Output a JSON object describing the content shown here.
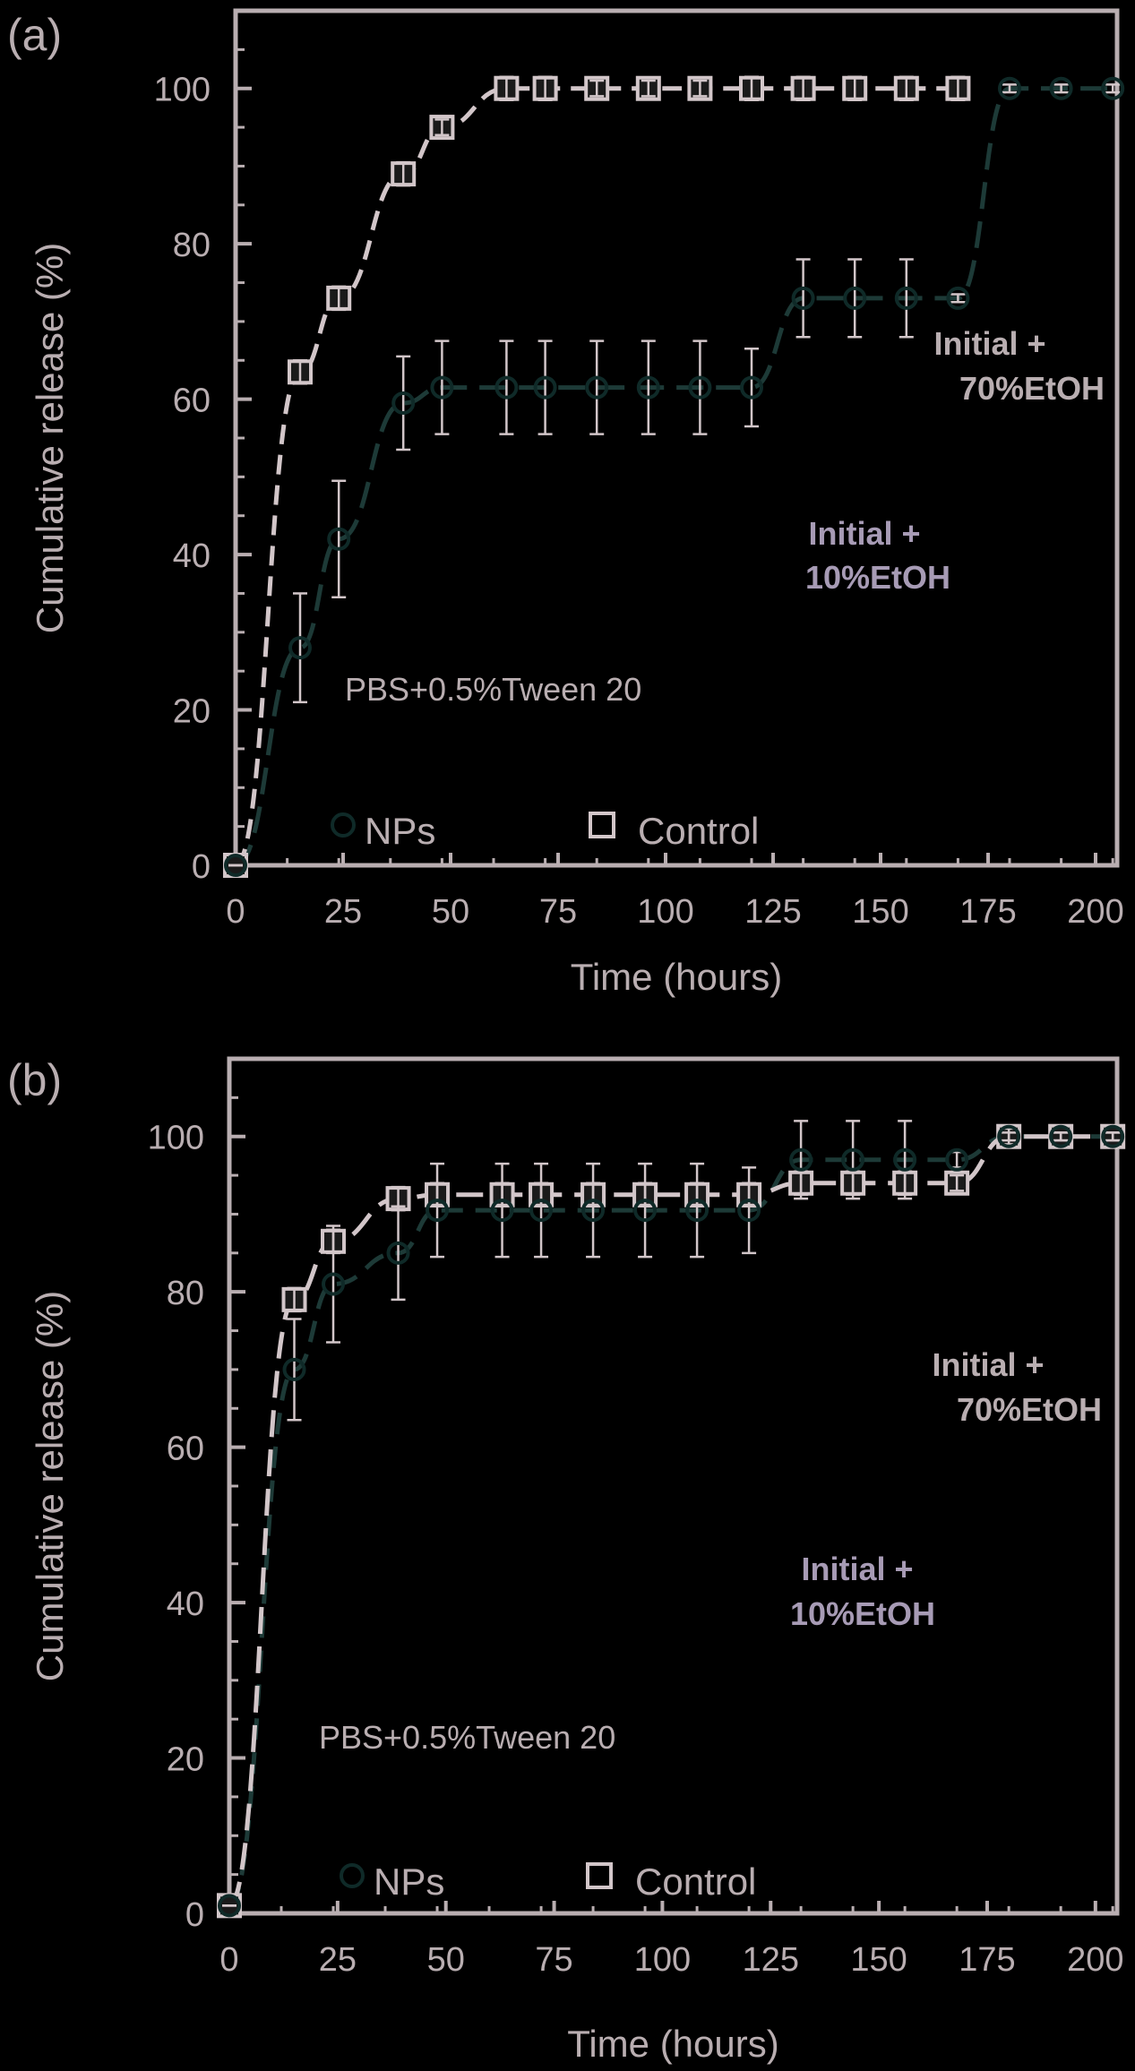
{
  "colors": {
    "background": "#000000",
    "axis": "#b9aeb1",
    "text": "#b9aeb1",
    "control": "#d2c6c9",
    "nps": "#0f2a28",
    "nps_line": "#1d3a37",
    "annotation_purple": "#a79bb5"
  },
  "chart_data": [
    {
      "type": "scatter",
      "panel_label": "(a)",
      "xlabel": "Time (hours)",
      "ylabel": "Cumulative release (%)",
      "xlim": [
        0,
        205
      ],
      "ylim": [
        0,
        110
      ],
      "xticks": [
        "0",
        "25",
        "50",
        "75",
        "100",
        "125",
        "150",
        "175",
        "200"
      ],
      "yticks": [
        "0",
        "20",
        "40",
        "60",
        "80",
        "100"
      ],
      "annotations": {
        "medium": "PBS+0.5%Tween 20",
        "ethanol10_line1": "Initial +",
        "ethanol10_line2": "10%EtOH",
        "ethanol70_line1": "Initial +",
        "ethanol70_line2": "70%EtOH"
      },
      "legend": {
        "nps": "NPs",
        "control": "Control",
        "position": "bottom"
      },
      "series": [
        {
          "name": "NPs",
          "x": [
            0,
            15,
            24,
            39,
            48,
            63,
            72,
            84,
            96,
            108,
            120,
            132,
            144,
            156,
            168,
            180,
            192,
            204
          ],
          "y": [
            0,
            28,
            42,
            59.5,
            61.5,
            61.5,
            61.5,
            61.5,
            61.5,
            61.5,
            61.5,
            73,
            73,
            73,
            73,
            100,
            100,
            100
          ],
          "err": [
            0,
            7,
            7.5,
            6,
            6,
            6,
            6,
            6,
            6,
            6,
            5,
            5,
            5,
            5,
            0.5,
            0.5,
            0.5,
            0.5
          ]
        },
        {
          "name": "Control",
          "x": [
            0,
            15,
            24,
            39,
            48,
            63,
            72,
            84,
            96,
            108,
            120,
            132,
            144,
            156,
            168
          ],
          "y": [
            0,
            63.5,
            73,
            89,
            95,
            100,
            100,
            100,
            100,
            100,
            100,
            100,
            100,
            100,
            100
          ],
          "err": [
            0,
            1.5,
            1.5,
            1.5,
            1,
            1.5,
            1.5,
            1,
            1,
            1,
            1.5,
            1.5,
            1.5,
            1.5,
            1.5
          ]
        }
      ]
    },
    {
      "type": "scatter",
      "panel_label": "(b)",
      "xlabel": "Time (hours)",
      "ylabel": "Cumulative release (%)",
      "xlim": [
        0,
        205
      ],
      "ylim": [
        0,
        110
      ],
      "xticks": [
        "0",
        "25",
        "50",
        "75",
        "100",
        "125",
        "150",
        "175",
        "200"
      ],
      "yticks": [
        "0",
        "20",
        "40",
        "60",
        "80",
        "100"
      ],
      "annotations": {
        "medium": "PBS+0.5%Tween 20",
        "ethanol10_line1": "Initial +",
        "ethanol10_line2": "10%EtOH",
        "ethanol70_line1": "Initial +",
        "ethanol70_line2": "70%EtOH"
      },
      "legend": {
        "nps": "NPs",
        "control": "Control",
        "position": "bottom"
      },
      "series": [
        {
          "name": "NPs",
          "x": [
            0,
            15,
            24,
            39,
            48,
            63,
            72,
            84,
            96,
            108,
            120,
            132,
            144,
            156,
            168,
            180,
            192,
            204
          ],
          "y": [
            1,
            70,
            81,
            85,
            90.5,
            90.5,
            90.5,
            90.5,
            90.5,
            90.5,
            90.5,
            97,
            97,
            97,
            97,
            100,
            100,
            100
          ],
          "err": [
            0,
            6.5,
            7.5,
            6,
            6,
            6,
            6,
            6,
            6,
            6,
            5.5,
            5,
            5,
            5,
            1,
            0.5,
            0.5,
            0.5
          ]
        },
        {
          "name": "Control",
          "x": [
            0,
            15,
            24,
            39,
            48,
            63,
            72,
            84,
            96,
            108,
            120,
            132,
            144,
            156,
            168,
            180,
            192,
            204
          ],
          "y": [
            1,
            79,
            86.5,
            92,
            92.5,
            92.5,
            92.5,
            92.5,
            92.5,
            92.5,
            92.5,
            94,
            94,
            94,
            94,
            100,
            100,
            100
          ],
          "err": [
            0,
            1.5,
            1.5,
            1.5,
            1.5,
            1.5,
            1.5,
            1.5,
            1.5,
            1.5,
            1.5,
            1.5,
            1.5,
            1.5,
            1,
            1,
            0.5,
            0.5
          ]
        }
      ]
    }
  ]
}
